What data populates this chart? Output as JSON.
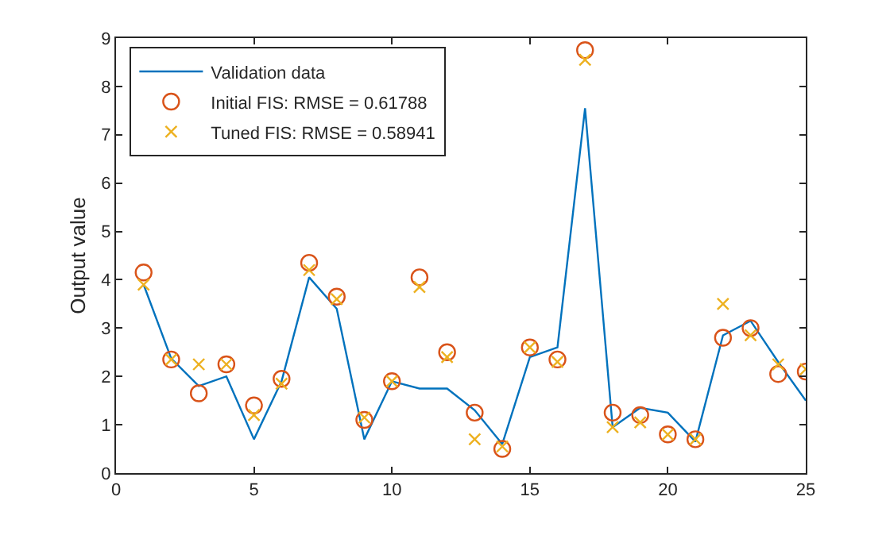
{
  "chart_data": {
    "type": "line",
    "ylabel": "Output value",
    "x": [
      1,
      2,
      3,
      4,
      5,
      6,
      7,
      8,
      9,
      10,
      11,
      12,
      13,
      14,
      15,
      16,
      17,
      18,
      19,
      20,
      21,
      22,
      23,
      24,
      25
    ],
    "xlim": [
      0,
      25
    ],
    "xticks": [
      0,
      5,
      10,
      15,
      20,
      25
    ],
    "ylim": [
      0,
      9
    ],
    "yticks": [
      0,
      1,
      2,
      3,
      4,
      5,
      6,
      7,
      8,
      9
    ],
    "grid": false,
    "legend": "top left",
    "series": [
      {
        "name": "Validation data",
        "color": "#0072bd",
        "marker": "none",
        "line_style": "solid",
        "values": [
          3.9,
          2.37,
          1.8,
          2.0,
          0.7,
          1.9,
          4.05,
          3.4,
          0.7,
          1.9,
          1.75,
          1.75,
          1.3,
          0.6,
          2.4,
          2.6,
          7.55,
          0.95,
          1.35,
          1.25,
          0.65,
          2.85,
          3.15,
          2.3,
          1.5
        ]
      },
      {
        "name": "Initial FIS: RMSE = 0.61788",
        "type": "scatter",
        "color": "#d95319",
        "marker": "circle",
        "values": [
          4.15,
          2.35,
          1.65,
          2.25,
          1.4,
          1.95,
          4.35,
          3.65,
          1.1,
          1.9,
          4.05,
          2.5,
          1.25,
          0.5,
          2.6,
          2.35,
          8.75,
          1.25,
          1.2,
          0.8,
          0.7,
          2.8,
          3.0,
          2.05,
          2.1
        ]
      },
      {
        "name": "Tuned FIS: RMSE = 0.58941",
        "type": "scatter",
        "color": "#edb120",
        "marker": "cross",
        "values": [
          3.9,
          2.35,
          2.25,
          2.25,
          1.2,
          1.85,
          4.2,
          3.6,
          1.15,
          1.9,
          3.85,
          2.4,
          0.7,
          0.55,
          2.6,
          2.3,
          8.55,
          0.95,
          1.05,
          0.8,
          0.7,
          3.5,
          2.85,
          2.25,
          2.15
        ]
      }
    ]
  }
}
